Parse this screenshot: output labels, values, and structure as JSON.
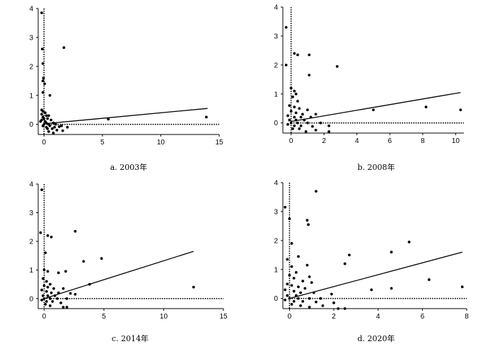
{
  "chart_data": [
    {
      "type": "scatter",
      "caption": "a. 2003年",
      "xlim": [
        -0.5,
        15
      ],
      "ylim": [
        -0.35,
        4
      ],
      "xticks": [
        0,
        5,
        10,
        15
      ],
      "yticks": [
        0,
        1,
        2,
        3,
        4
      ],
      "trend_line": {
        "x": [
          0,
          14
        ],
        "y": [
          0.02,
          0.55
        ]
      },
      "points": [
        [
          -0.2,
          3.85
        ],
        [
          -0.15,
          2.6
        ],
        [
          -0.1,
          2.1
        ],
        [
          -0.05,
          1.6
        ],
        [
          -0.1,
          1.5
        ],
        [
          0.05,
          1.4
        ],
        [
          -0.1,
          1.1
        ],
        [
          0.5,
          1.0
        ],
        [
          1.7,
          2.65
        ],
        [
          -0.2,
          0.5
        ],
        [
          -0.1,
          0.45
        ],
        [
          0.1,
          0.4
        ],
        [
          -0.2,
          0.35
        ],
        [
          0.2,
          0.3
        ],
        [
          0.4,
          0.3
        ],
        [
          -0.1,
          0.25
        ],
        [
          0.0,
          0.2
        ],
        [
          0.3,
          0.2
        ],
        [
          -0.2,
          0.15
        ],
        [
          0.6,
          0.15
        ],
        [
          0.1,
          0.1
        ],
        [
          -0.3,
          0.1
        ],
        [
          0.2,
          0.05
        ],
        [
          0.8,
          0.05
        ],
        [
          0.0,
          0.0
        ],
        [
          0.4,
          0.0
        ],
        [
          1.0,
          0.0
        ],
        [
          -0.1,
          -0.05
        ],
        [
          0.5,
          -0.05
        ],
        [
          1.5,
          -0.05
        ],
        [
          0.2,
          -0.1
        ],
        [
          0.9,
          -0.1
        ],
        [
          1.3,
          -0.08
        ],
        [
          2.0,
          -0.1
        ],
        [
          0.3,
          -0.15
        ],
        [
          0.7,
          -0.15
        ],
        [
          1.1,
          -0.2
        ],
        [
          0.4,
          -0.25
        ],
        [
          1.6,
          -0.22
        ],
        [
          0.8,
          -0.3
        ],
        [
          5.5,
          0.18
        ],
        [
          13.9,
          0.25
        ]
      ]
    },
    {
      "type": "scatter",
      "caption": "b. 2008年",
      "xlim": [
        -0.5,
        10.5
      ],
      "ylim": [
        -0.35,
        4
      ],
      "xticks": [
        0,
        2,
        4,
        6,
        8,
        10
      ],
      "yticks": [
        0,
        1,
        2,
        3,
        4
      ],
      "trend_line": {
        "x": [
          0,
          10.3
        ],
        "y": [
          0.05,
          1.05
        ]
      },
      "points": [
        [
          -0.3,
          3.3
        ],
        [
          -0.3,
          2.0
        ],
        [
          0.2,
          2.4
        ],
        [
          0.4,
          2.35
        ],
        [
          1.1,
          2.35
        ],
        [
          1.1,
          1.65
        ],
        [
          2.8,
          1.95
        ],
        [
          0.0,
          1.2
        ],
        [
          0.2,
          1.1
        ],
        [
          0.3,
          1.0
        ],
        [
          0.1,
          0.9
        ],
        [
          0.4,
          0.75
        ],
        [
          -0.1,
          0.6
        ],
        [
          0.2,
          0.55
        ],
        [
          0.5,
          0.5
        ],
        [
          1.0,
          0.45
        ],
        [
          0.0,
          0.4
        ],
        [
          0.3,
          0.35
        ],
        [
          0.7,
          0.3
        ],
        [
          1.5,
          0.3
        ],
        [
          -0.2,
          0.25
        ],
        [
          0.2,
          0.2
        ],
        [
          0.6,
          0.2
        ],
        [
          1.2,
          0.2
        ],
        [
          -0.1,
          0.1
        ],
        [
          0.3,
          0.1
        ],
        [
          0.8,
          0.1
        ],
        [
          0.0,
          0.0
        ],
        [
          0.4,
          0.0
        ],
        [
          1.0,
          0.0
        ],
        [
          1.8,
          0.0
        ],
        [
          -0.2,
          -0.05
        ],
        [
          0.2,
          -0.1
        ],
        [
          0.6,
          -0.1
        ],
        [
          1.3,
          -0.12
        ],
        [
          2.3,
          -0.1
        ],
        [
          0.1,
          -0.2
        ],
        [
          0.5,
          -0.2
        ],
        [
          1.5,
          -0.25
        ],
        [
          2.3,
          -0.3
        ],
        [
          0.9,
          -0.3
        ],
        [
          5.0,
          0.45
        ],
        [
          8.2,
          0.55
        ],
        [
          10.3,
          0.45
        ]
      ]
    },
    {
      "type": "scatter",
      "caption": "c. 2014年",
      "xlim": [
        -0.5,
        15
      ],
      "ylim": [
        -0.35,
        4
      ],
      "xticks": [
        0,
        5,
        10,
        15
      ],
      "yticks": [
        0,
        1,
        2,
        3,
        4
      ],
      "trend_line": {
        "x": [
          0,
          12.5
        ],
        "y": [
          0.0,
          1.65
        ]
      },
      "points": [
        [
          -0.2,
          3.8
        ],
        [
          -0.3,
          2.3
        ],
        [
          0.3,
          2.2
        ],
        [
          0.6,
          2.15
        ],
        [
          2.6,
          2.35
        ],
        [
          0.1,
          1.6
        ],
        [
          4.8,
          1.4
        ],
        [
          3.3,
          1.3
        ],
        [
          0.0,
          1.0
        ],
        [
          0.3,
          0.95
        ],
        [
          1.2,
          0.9
        ],
        [
          1.8,
          0.95
        ],
        [
          -0.1,
          0.7
        ],
        [
          0.2,
          0.6
        ],
        [
          0.5,
          0.5
        ],
        [
          3.8,
          0.5
        ],
        [
          0.0,
          0.45
        ],
        [
          0.3,
          0.4
        ],
        [
          0.8,
          0.35
        ],
        [
          1.6,
          0.35
        ],
        [
          -0.2,
          0.3
        ],
        [
          0.2,
          0.25
        ],
        [
          0.6,
          0.2
        ],
        [
          1.2,
          0.2
        ],
        [
          2.2,
          0.18
        ],
        [
          2.6,
          0.15
        ],
        [
          -0.1,
          0.1
        ],
        [
          0.3,
          0.1
        ],
        [
          0.9,
          0.1
        ],
        [
          0.0,
          0.0
        ],
        [
          0.5,
          0.0
        ],
        [
          1.1,
          0.0
        ],
        [
          1.9,
          0.0
        ],
        [
          -0.2,
          -0.05
        ],
        [
          0.2,
          -0.1
        ],
        [
          0.7,
          -0.1
        ],
        [
          1.4,
          -0.15
        ],
        [
          0.1,
          -0.2
        ],
        [
          0.5,
          -0.25
        ],
        [
          1.6,
          -0.3
        ],
        [
          1.9,
          -0.3
        ],
        [
          12.5,
          0.4
        ]
      ]
    },
    {
      "type": "scatter",
      "caption": "d. 2020年",
      "xlim": [
        -0.3,
        8
      ],
      "ylim": [
        -0.35,
        4
      ],
      "xticks": [
        0,
        2,
        4,
        6,
        8
      ],
      "yticks": [
        0,
        1,
        2,
        3,
        4
      ],
      "trend_line": {
        "x": [
          0,
          7.8
        ],
        "y": [
          0.0,
          1.6
        ]
      },
      "points": [
        [
          -0.2,
          3.15
        ],
        [
          0.0,
          2.75
        ],
        [
          0.8,
          2.7
        ],
        [
          0.85,
          2.55
        ],
        [
          1.2,
          3.7
        ],
        [
          5.4,
          1.95
        ],
        [
          4.6,
          1.6
        ],
        [
          0.1,
          1.9
        ],
        [
          0.4,
          1.45
        ],
        [
          0.8,
          1.15
        ],
        [
          2.7,
          1.5
        ],
        [
          2.5,
          1.2
        ],
        [
          -0.1,
          1.35
        ],
        [
          0.1,
          1.1
        ],
        [
          0.3,
          0.9
        ],
        [
          0.0,
          0.8
        ],
        [
          0.2,
          0.7
        ],
        [
          0.6,
          0.6
        ],
        [
          1.0,
          0.55
        ],
        [
          0.9,
          0.75
        ],
        [
          -0.1,
          0.5
        ],
        [
          0.1,
          0.45
        ],
        [
          0.4,
          0.4
        ],
        [
          0.7,
          0.35
        ],
        [
          -0.2,
          0.3
        ],
        [
          0.2,
          0.25
        ],
        [
          0.5,
          0.2
        ],
        [
          1.1,
          0.2
        ],
        [
          1.9,
          0.15
        ],
        [
          -0.1,
          0.1
        ],
        [
          0.3,
          0.1
        ],
        [
          0.0,
          0.0
        ],
        [
          0.4,
          0.0
        ],
        [
          0.9,
          0.0
        ],
        [
          1.4,
          0.0
        ],
        [
          -0.2,
          -0.05
        ],
        [
          0.2,
          -0.1
        ],
        [
          0.6,
          -0.1
        ],
        [
          1.2,
          -0.12
        ],
        [
          2.0,
          -0.15
        ],
        [
          0.1,
          -0.2
        ],
        [
          0.5,
          -0.25
        ],
        [
          1.5,
          -0.25
        ],
        [
          2.2,
          -0.35
        ],
        [
          2.5,
          -0.35
        ],
        [
          0.9,
          -0.3
        ],
        [
          3.7,
          0.3
        ],
        [
          4.6,
          0.35
        ],
        [
          6.3,
          0.65
        ],
        [
          7.8,
          0.4
        ]
      ]
    }
  ]
}
